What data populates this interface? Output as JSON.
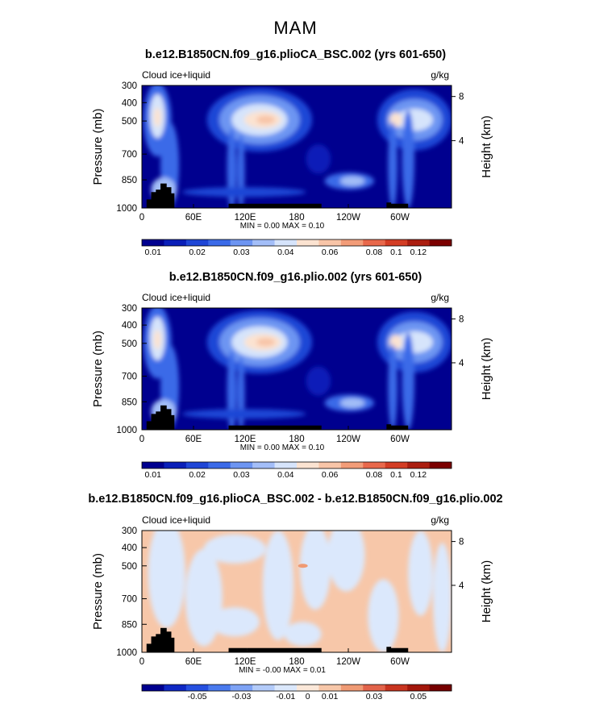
{
  "title": "MAM",
  "chart_data": [
    {
      "type": "heatmap",
      "title": "b.e12.B1850CN.f09_g16.plioCA_BSC.002 (yrs 601-650)",
      "left_label": "Cloud ice+liquid",
      "units": "g/kg",
      "ylabel": "Pressure (mb)",
      "ylabel_right": "Height (km)",
      "yticks": [
        "300",
        "400",
        "500",
        "700",
        "850",
        "1000"
      ],
      "yticks_right": [
        "8",
        "4"
      ],
      "xticks": [
        "0",
        "60E",
        "120E",
        "180",
        "120W",
        "60W"
      ],
      "stats": "MIN =    0.00   MAX =    0.10",
      "colorbar_labels": [
        "0.01",
        "0.02",
        "0.03",
        "0.04",
        "0.06",
        "0.08",
        "0.1",
        "0.12"
      ]
    },
    {
      "type": "heatmap",
      "title": "b.e12.B1850CN.f09_g16.plio.002 (yrs 601-650)",
      "left_label": "Cloud ice+liquid",
      "units": "g/kg",
      "ylabel": "Pressure (mb)",
      "ylabel_right": "Height (km)",
      "yticks": [
        "300",
        "400",
        "500",
        "700",
        "850",
        "1000"
      ],
      "yticks_right": [
        "8",
        "4"
      ],
      "xticks": [
        "0",
        "60E",
        "120E",
        "180",
        "120W",
        "60W"
      ],
      "stats": "MIN =    0.00   MAX =    0.10",
      "colorbar_labels": [
        "0.01",
        "0.02",
        "0.03",
        "0.04",
        "0.06",
        "0.08",
        "0.1",
        "0.12"
      ]
    },
    {
      "type": "heatmap",
      "title": "b.e12.B1850CN.f09_g16.plioCA_BSC.002 - b.e12.B1850CN.f09_g16.plio.002",
      "left_label": "Cloud ice+liquid",
      "units": "g/kg",
      "ylabel": "Pressure (mb)",
      "ylabel_right": "Height (km)",
      "yticks": [
        "300",
        "400",
        "500",
        "700",
        "850",
        "1000"
      ],
      "yticks_right": [
        "8",
        "4"
      ],
      "xticks": [
        "0",
        "60E",
        "120E",
        "180",
        "120W",
        "60W"
      ],
      "stats": "MIN =   -0.00   MAX =    0.01",
      "colorbar_labels": [
        "-0.05",
        "-0.03",
        "-0.01",
        "0",
        "0.01",
        "0.03",
        "0.05"
      ]
    }
  ],
  "colors": {
    "seq": [
      "#00008f",
      "#0a1fb8",
      "#1f46d6",
      "#3b6ae8",
      "#6d95f2",
      "#a3bef8",
      "#d6e4fb",
      "#fbe3d1",
      "#f8c5a8",
      "#f29c78",
      "#e8684b",
      "#d33d24",
      "#ab1e10",
      "#7b0000"
    ],
    "div": [
      "#00008f",
      "#0f28c4",
      "#2650e0",
      "#4a7aee",
      "#7ea3f5",
      "#b3cbf9",
      "#dbe8fc",
      "#fbe8d9",
      "#f7c7a9",
      "#ef9a74",
      "#e2634a",
      "#c8341f",
      "#a3170b",
      "#760000"
    ],
    "land": "#000000"
  }
}
